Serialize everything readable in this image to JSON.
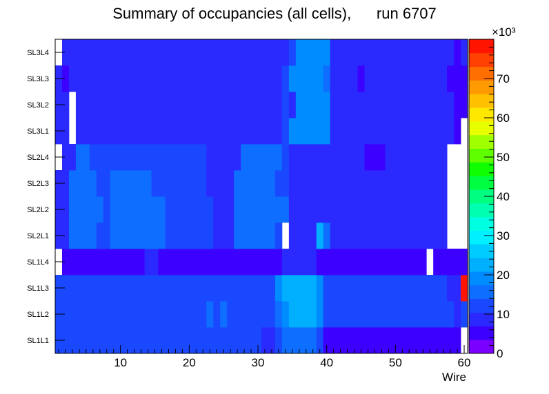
{
  "chart_data": {
    "type": "heatmap",
    "title": "Summary of occupancies (all cells),      run 6707",
    "xlabel": "Wire",
    "ylabel": "",
    "xlim": [
      0.5,
      60.5
    ],
    "x_ticks": [
      "10",
      "20",
      "30",
      "40",
      "50",
      "60"
    ],
    "rows": [
      "SL1L1",
      "SL1L2",
      "SL1L3",
      "SL1L4",
      "SL2L1",
      "SL2L2",
      "SL2L3",
      "SL2L4",
      "SL3L1",
      "SL3L2",
      "SL3L3",
      "SL3L4"
    ],
    "colorbar": {
      "min": 0,
      "max": 80,
      "multiplier": "×10³",
      "ticks": [
        "0",
        "10",
        "20",
        "30",
        "40",
        "50",
        "60",
        "70"
      ],
      "palette": [
        "#7A00FF",
        "#3C00FF",
        "#2A2AFF",
        "#1A48FF",
        "#0E6EFF",
        "#008CFF",
        "#00B0FF",
        "#00CCFF",
        "#00F0FF",
        "#00FFE0",
        "#00FFB0",
        "#00FF80",
        "#00FF40",
        "#10FF00",
        "#60FF00",
        "#A0FF00",
        "#E8FF00",
        "#FFE800",
        "#FFC000",
        "#FF9A00",
        "#FF6E00",
        "#FF4000",
        "#FF1400"
      ]
    },
    "segments": {
      "SL1L1": [
        [
          1,
          30,
          10.5
        ],
        [
          31,
          32,
          7
        ],
        [
          33,
          33,
          10.5
        ],
        [
          34,
          38,
          17
        ],
        [
          39,
          39,
          11.5
        ],
        [
          40,
          59,
          6
        ],
        [
          60,
          60,
          null
        ]
      ],
      "SL1L2": [
        [
          1,
          22,
          11
        ],
        [
          23,
          23,
          15
        ],
        [
          24,
          24,
          11
        ],
        [
          25,
          25,
          15
        ],
        [
          26,
          32,
          11
        ],
        [
          33,
          33,
          15
        ],
        [
          34,
          34,
          19
        ],
        [
          35,
          38,
          24
        ],
        [
          39,
          39,
          19
        ],
        [
          40,
          58,
          11
        ],
        [
          59,
          59,
          9
        ],
        [
          60,
          60,
          11
        ]
      ],
      "SL1L3": [
        [
          1,
          32,
          11
        ],
        [
          33,
          33,
          19
        ],
        [
          34,
          38,
          24
        ],
        [
          39,
          39,
          19
        ],
        [
          40,
          57,
          11
        ],
        [
          58,
          58,
          9
        ],
        [
          59,
          59,
          9
        ],
        [
          60,
          60,
          78
        ]
      ],
      "SL1L4": [
        [
          1,
          1,
          null
        ],
        [
          2,
          13,
          6
        ],
        [
          14,
          15,
          8
        ],
        [
          16,
          33,
          6
        ],
        [
          34,
          35,
          9
        ],
        [
          36,
          37,
          7
        ],
        [
          38,
          38,
          9
        ],
        [
          39,
          54,
          6
        ],
        [
          55,
          55,
          null
        ],
        [
          56,
          60,
          6
        ]
      ],
      "SL2L1": [
        [
          1,
          2,
          10
        ],
        [
          3,
          6,
          14
        ],
        [
          7,
          8,
          11
        ],
        [
          9,
          16,
          15
        ],
        [
          17,
          23,
          11
        ],
        [
          24,
          26,
          9
        ],
        [
          27,
          32,
          15
        ],
        [
          33,
          33,
          11
        ],
        [
          34,
          34,
          null
        ],
        [
          35,
          38,
          7
        ],
        [
          39,
          39,
          22
        ],
        [
          40,
          40,
          16
        ],
        [
          41,
          57,
          7
        ],
        [
          58,
          60,
          null
        ]
      ],
      "SL2L2": [
        [
          1,
          2,
          10
        ],
        [
          3,
          7,
          14
        ],
        [
          8,
          8,
          11
        ],
        [
          9,
          16,
          15
        ],
        [
          17,
          23,
          11
        ],
        [
          24,
          25,
          9
        ],
        [
          26,
          26,
          7
        ],
        [
          27,
          34,
          15
        ],
        [
          35,
          57,
          7
        ],
        [
          58,
          60,
          null
        ]
      ],
      "SL2L3": [
        [
          1,
          2,
          10
        ],
        [
          3,
          6,
          14
        ],
        [
          7,
          8,
          11
        ],
        [
          9,
          14,
          15
        ],
        [
          15,
          22,
          11
        ],
        [
          23,
          25,
          9
        ],
        [
          26,
          26,
          10
        ],
        [
          27,
          32,
          15
        ],
        [
          33,
          34,
          11
        ],
        [
          35,
          57,
          7
        ],
        [
          58,
          60,
          null
        ]
      ],
      "SL2L4": [
        [
          1,
          1,
          null
        ],
        [
          2,
          3,
          10
        ],
        [
          4,
          5,
          14
        ],
        [
          6,
          22,
          11
        ],
        [
          23,
          25,
          9
        ],
        [
          26,
          27,
          10
        ],
        [
          28,
          33,
          15
        ],
        [
          34,
          34,
          11
        ],
        [
          35,
          45,
          7
        ],
        [
          46,
          48,
          5
        ],
        [
          49,
          57,
          7
        ],
        [
          58,
          60,
          null
        ]
      ],
      "SL3L1": [
        [
          1,
          1,
          7
        ],
        [
          2,
          2,
          7
        ],
        [
          3,
          3,
          null
        ],
        [
          4,
          33,
          7
        ],
        [
          34,
          34,
          12
        ],
        [
          35,
          40,
          20
        ],
        [
          41,
          48,
          7
        ],
        [
          49,
          49,
          10
        ],
        [
          50,
          58,
          7
        ],
        [
          59,
          59,
          5
        ],
        [
          60,
          60,
          null
        ]
      ],
      "SL3L2": [
        [
          1,
          1,
          7
        ],
        [
          2,
          2,
          7
        ],
        [
          3,
          3,
          null
        ],
        [
          4,
          33,
          7
        ],
        [
          34,
          34,
          12
        ],
        [
          35,
          35,
          9
        ],
        [
          36,
          40,
          20
        ],
        [
          41,
          58,
          7
        ],
        [
          59,
          60,
          5
        ]
      ],
      "SL3L3": [
        [
          1,
          1,
          7
        ],
        [
          2,
          2,
          5
        ],
        [
          3,
          3,
          7
        ],
        [
          4,
          33,
          7
        ],
        [
          34,
          34,
          11
        ],
        [
          35,
          39,
          20
        ],
        [
          40,
          40,
          15
        ],
        [
          41,
          44,
          7
        ],
        [
          45,
          45,
          5
        ],
        [
          46,
          57,
          7
        ],
        [
          58,
          60,
          5
        ]
      ],
      "SL3L4": [
        [
          1,
          1,
          null
        ],
        [
          2,
          33,
          7
        ],
        [
          34,
          34,
          10
        ],
        [
          35,
          35,
          13
        ],
        [
          36,
          40,
          20
        ],
        [
          41,
          58,
          7
        ],
        [
          59,
          59,
          5
        ],
        [
          60,
          60,
          7
        ]
      ]
    }
  }
}
